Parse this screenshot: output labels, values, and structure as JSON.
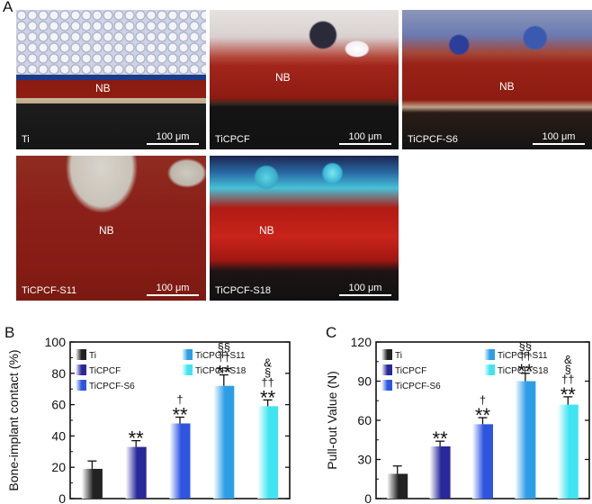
{
  "panel_labels": {
    "a": "A",
    "b": "B",
    "c": "C"
  },
  "images": [
    {
      "name": "Ti",
      "nb": "NB",
      "scale": "100 μm"
    },
    {
      "name": "TiCPCF",
      "nb": "NB",
      "scale": "100 μm"
    },
    {
      "name": "TiCPCF-S6",
      "nb": "NB",
      "scale": "100 μm"
    },
    {
      "name": "TiCPCF-S11",
      "nb": "NB",
      "scale": "100 μm"
    },
    {
      "name": "TiCPCF-S18",
      "nb": "NB",
      "scale": "100 μm"
    }
  ],
  "chart_data": [
    {
      "type": "bar",
      "ylabel": "Bone-implant contact (%)",
      "ylim": [
        0,
        100
      ],
      "yticks": [
        0,
        20,
        40,
        60,
        80,
        100
      ],
      "categories": [
        "Ti",
        "TiCPCF",
        "TiCPCF-S6",
        "TiCPCF-S11",
        "TiCPCF-S18"
      ],
      "values": [
        19,
        33,
        48,
        72,
        59
      ],
      "errors": [
        5,
        4,
        4,
        7,
        4
      ],
      "colors": [
        "#222222",
        "#28289a",
        "#2d55e0",
        "#2c9ee6",
        "#3fe4f2"
      ],
      "legend": [
        "Ti",
        "TiCPCF",
        "TiCPCF-S6",
        "TiCPCF-S11",
        "TiCPCF-S18"
      ],
      "annotations": [
        [],
        [
          "**"
        ],
        [
          "**",
          "†"
        ],
        [
          "**",
          "††",
          "§§"
        ],
        [
          "**",
          "††",
          "§",
          "&"
        ]
      ]
    },
    {
      "type": "bar",
      "ylabel": "Pull-out Value (N)",
      "ylim": [
        0,
        120
      ],
      "yticks": [
        0,
        30,
        60,
        90,
        120
      ],
      "categories": [
        "Ti",
        "TiCPCF",
        "TiCPCF-S6",
        "TiCPCF-S11",
        "TiCPCF-S18"
      ],
      "values": [
        19,
        40,
        57,
        90,
        72
      ],
      "errors": [
        6,
        4,
        5,
        6,
        6
      ],
      "colors": [
        "#222222",
        "#28289a",
        "#2d55e0",
        "#2c9ee6",
        "#3fe4f2"
      ],
      "legend": [
        "Ti",
        "TiCPCF",
        "TiCPCF-S6",
        "TiCPCF-S11",
        "TiCPCF-S18"
      ],
      "annotations": [
        [],
        [
          "**"
        ],
        [
          "**",
          "†"
        ],
        [
          "**",
          "††",
          "§§"
        ],
        [
          "**",
          "††",
          "§",
          "&"
        ]
      ]
    }
  ]
}
